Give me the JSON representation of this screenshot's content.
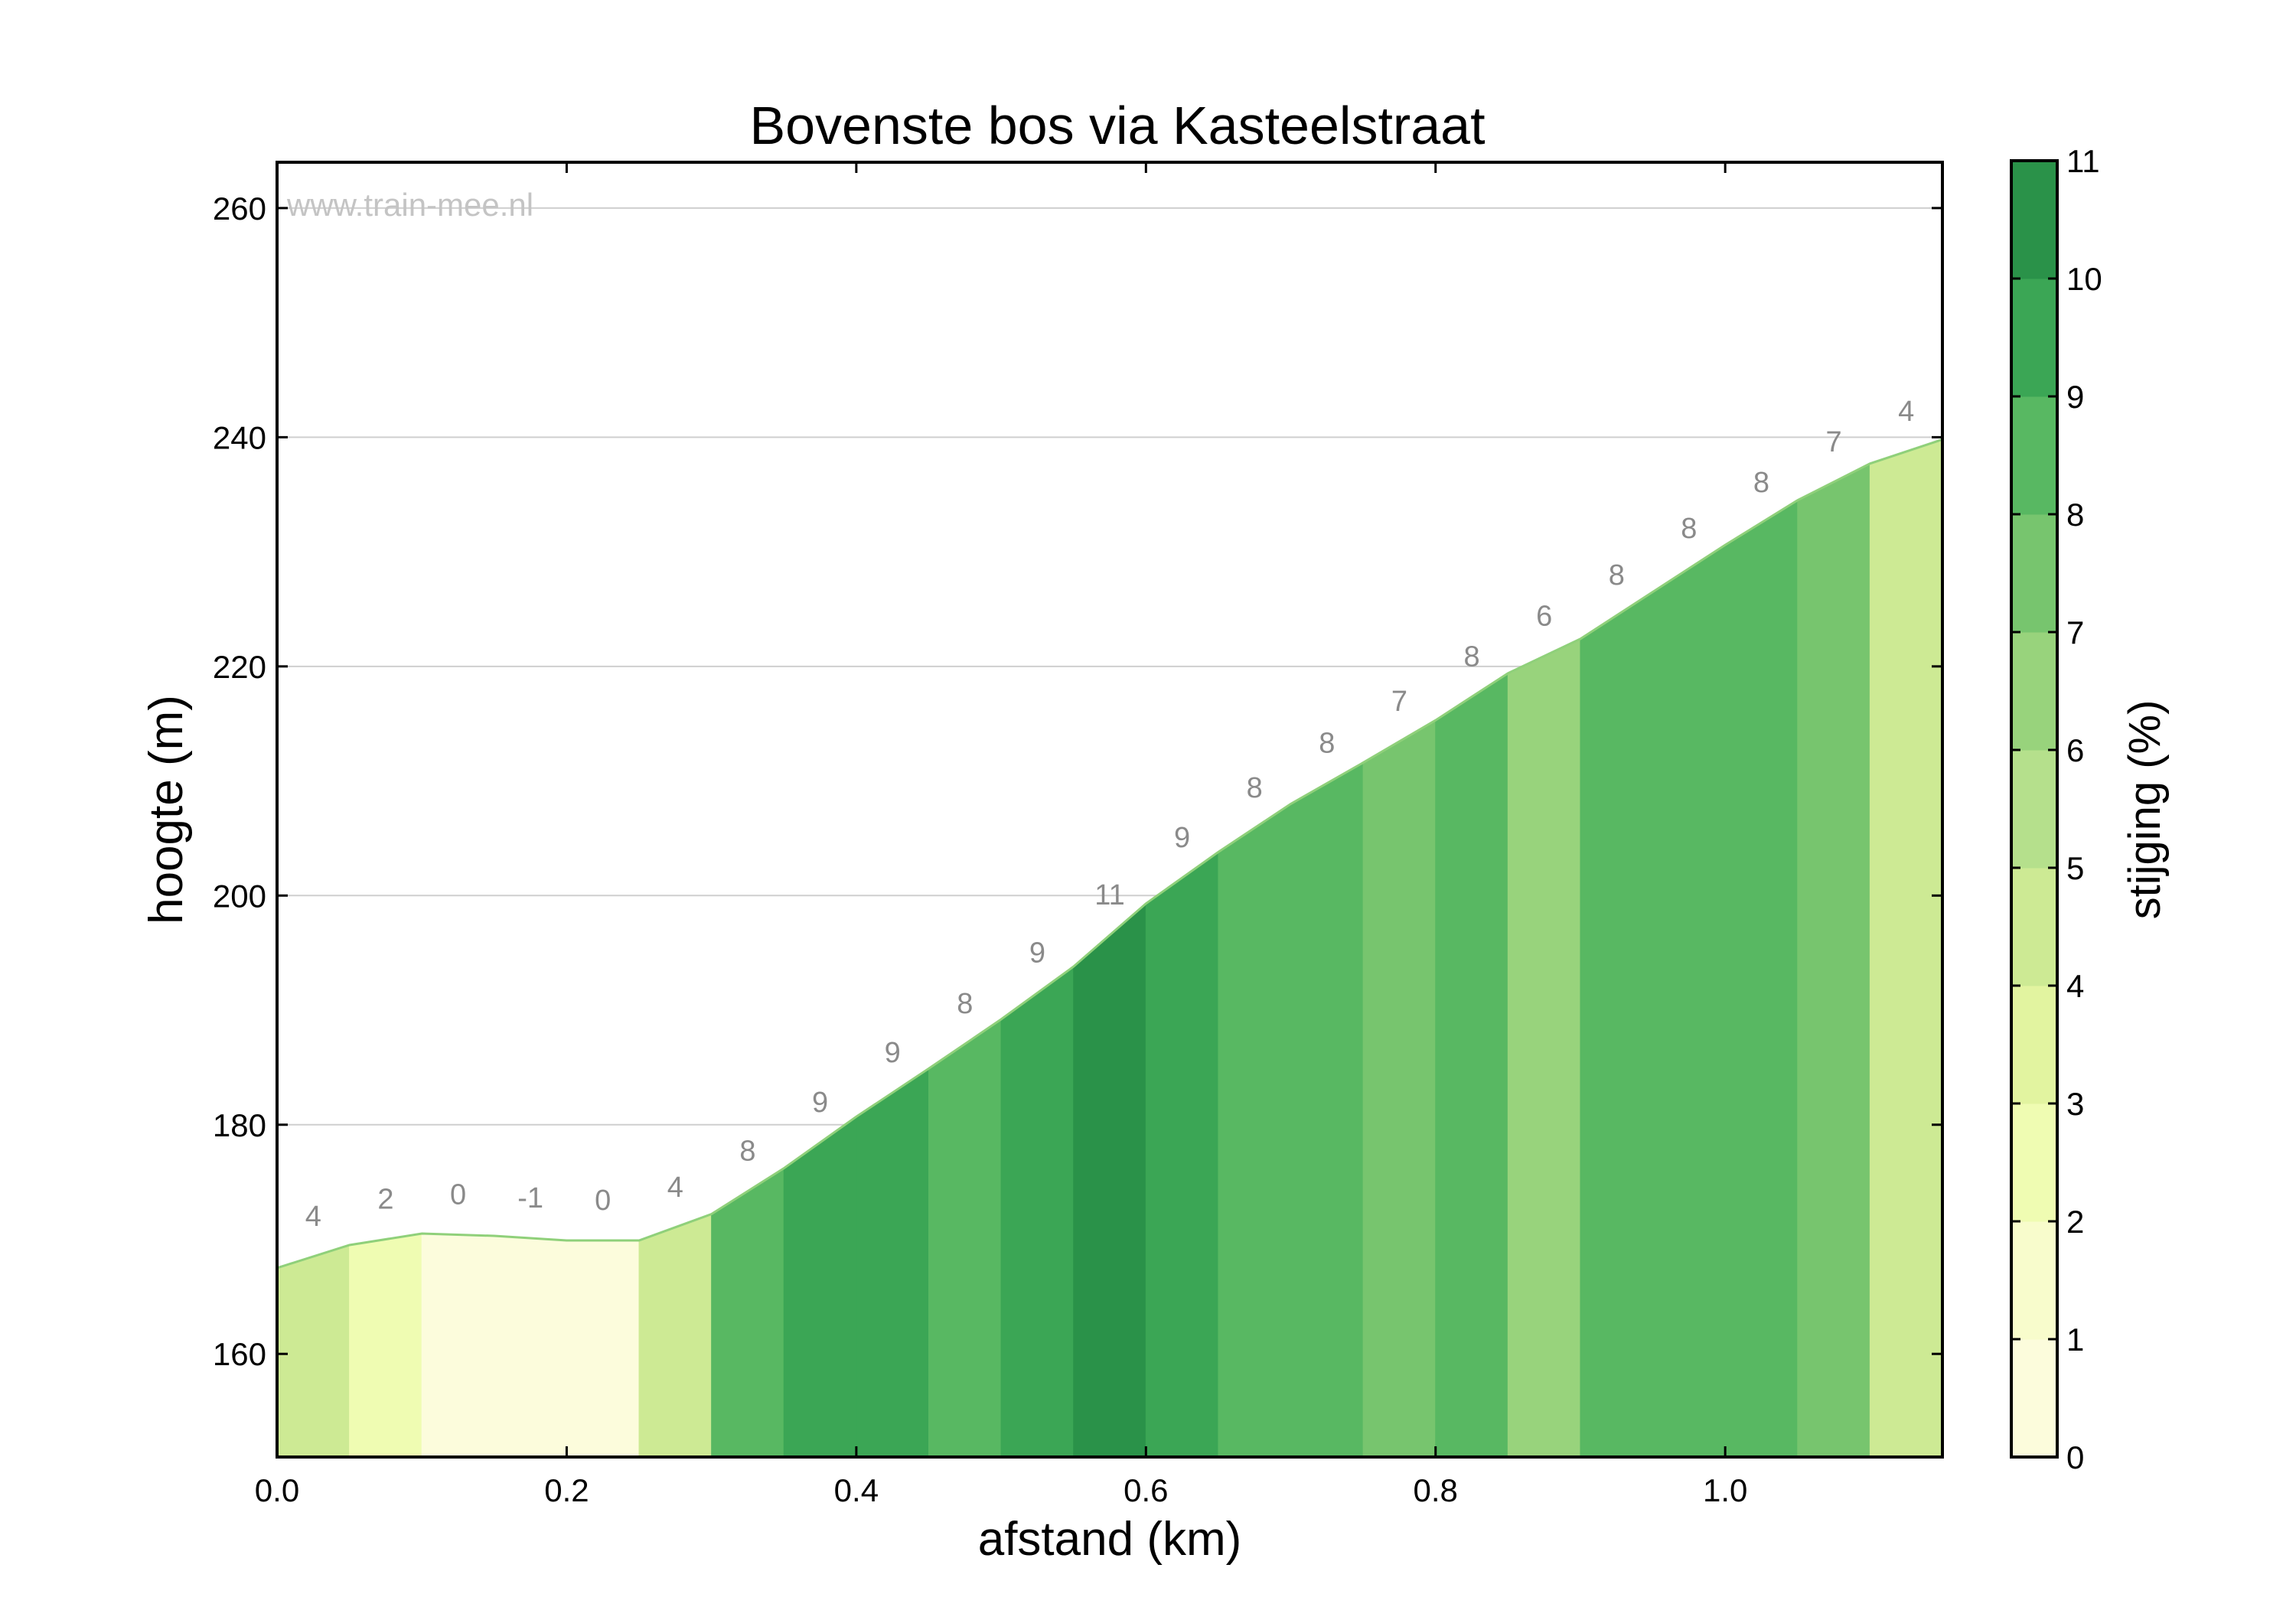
{
  "chart_data": {
    "type": "area",
    "title": "Bovenste bos via Kasteelstraat",
    "xlabel": "afstand (km)",
    "ylabel": "hoogte (m)",
    "colorbar_label": "stijging (%)",
    "watermark": "www.train-mee.nl",
    "xlim": [
      0,
      1.15
    ],
    "ylim": [
      151,
      264
    ],
    "x_ticks": [
      "0.0",
      "0.2",
      "0.4",
      "0.6",
      "0.8",
      "1.0"
    ],
    "y_ticks": [
      "160",
      "180",
      "200",
      "220",
      "240",
      "260"
    ],
    "colorbar_ticks": [
      "0",
      "1",
      "2",
      "3",
      "4",
      "5",
      "6",
      "7",
      "8",
      "9",
      "10",
      "11"
    ],
    "grid": "horizontal",
    "x": [
      0.0,
      0.05,
      0.1,
      0.15,
      0.2,
      0.25,
      0.3,
      0.35,
      0.4,
      0.45,
      0.5,
      0.55,
      0.6,
      0.65,
      0.7,
      0.75,
      0.8,
      0.85,
      0.9,
      0.95,
      1.0,
      1.05,
      1.1,
      1.15
    ],
    "elevation": [
      167.5,
      169.5,
      170.5,
      170.3,
      169.9,
      169.9,
      172.2,
      176.2,
      180.7,
      184.9,
      189.2,
      193.8,
      199.3,
      203.8,
      208.0,
      211.6,
      215.3,
      219.4,
      222.4,
      226.5,
      230.6,
      234.5,
      237.7,
      239.8
    ],
    "segments": [
      {
        "grade": 4,
        "label": "4"
      },
      {
        "grade": 2,
        "label": "2"
      },
      {
        "grade": 0,
        "label": "0"
      },
      {
        "grade": -1,
        "label": "-1"
      },
      {
        "grade": 0,
        "label": "0"
      },
      {
        "grade": 4,
        "label": "4"
      },
      {
        "grade": 8,
        "label": "8"
      },
      {
        "grade": 9,
        "label": "9"
      },
      {
        "grade": 9,
        "label": "9"
      },
      {
        "grade": 8,
        "label": "8"
      },
      {
        "grade": 9,
        "label": "9"
      },
      {
        "grade": 11,
        "label": "11"
      },
      {
        "grade": 9,
        "label": "9"
      },
      {
        "grade": 8,
        "label": "8"
      },
      {
        "grade": 8,
        "label": "8"
      },
      {
        "grade": 7,
        "label": "7"
      },
      {
        "grade": 8,
        "label": "8"
      },
      {
        "grade": 6,
        "label": "6"
      },
      {
        "grade": 8,
        "label": "8"
      },
      {
        "grade": 8,
        "label": "8"
      },
      {
        "grade": 8,
        "label": "8"
      },
      {
        "grade": 7,
        "label": "7"
      },
      {
        "grade": 4,
        "label": "4"
      }
    ],
    "colormap": [
      "#fcfcdc",
      "#f8fccc",
      "#effcb2",
      "#e2f4a0",
      "#cdea94",
      "#b5e08c",
      "#98d37c",
      "#77c56e",
      "#58b862",
      "#3ba655",
      "#2a9249"
    ]
  }
}
